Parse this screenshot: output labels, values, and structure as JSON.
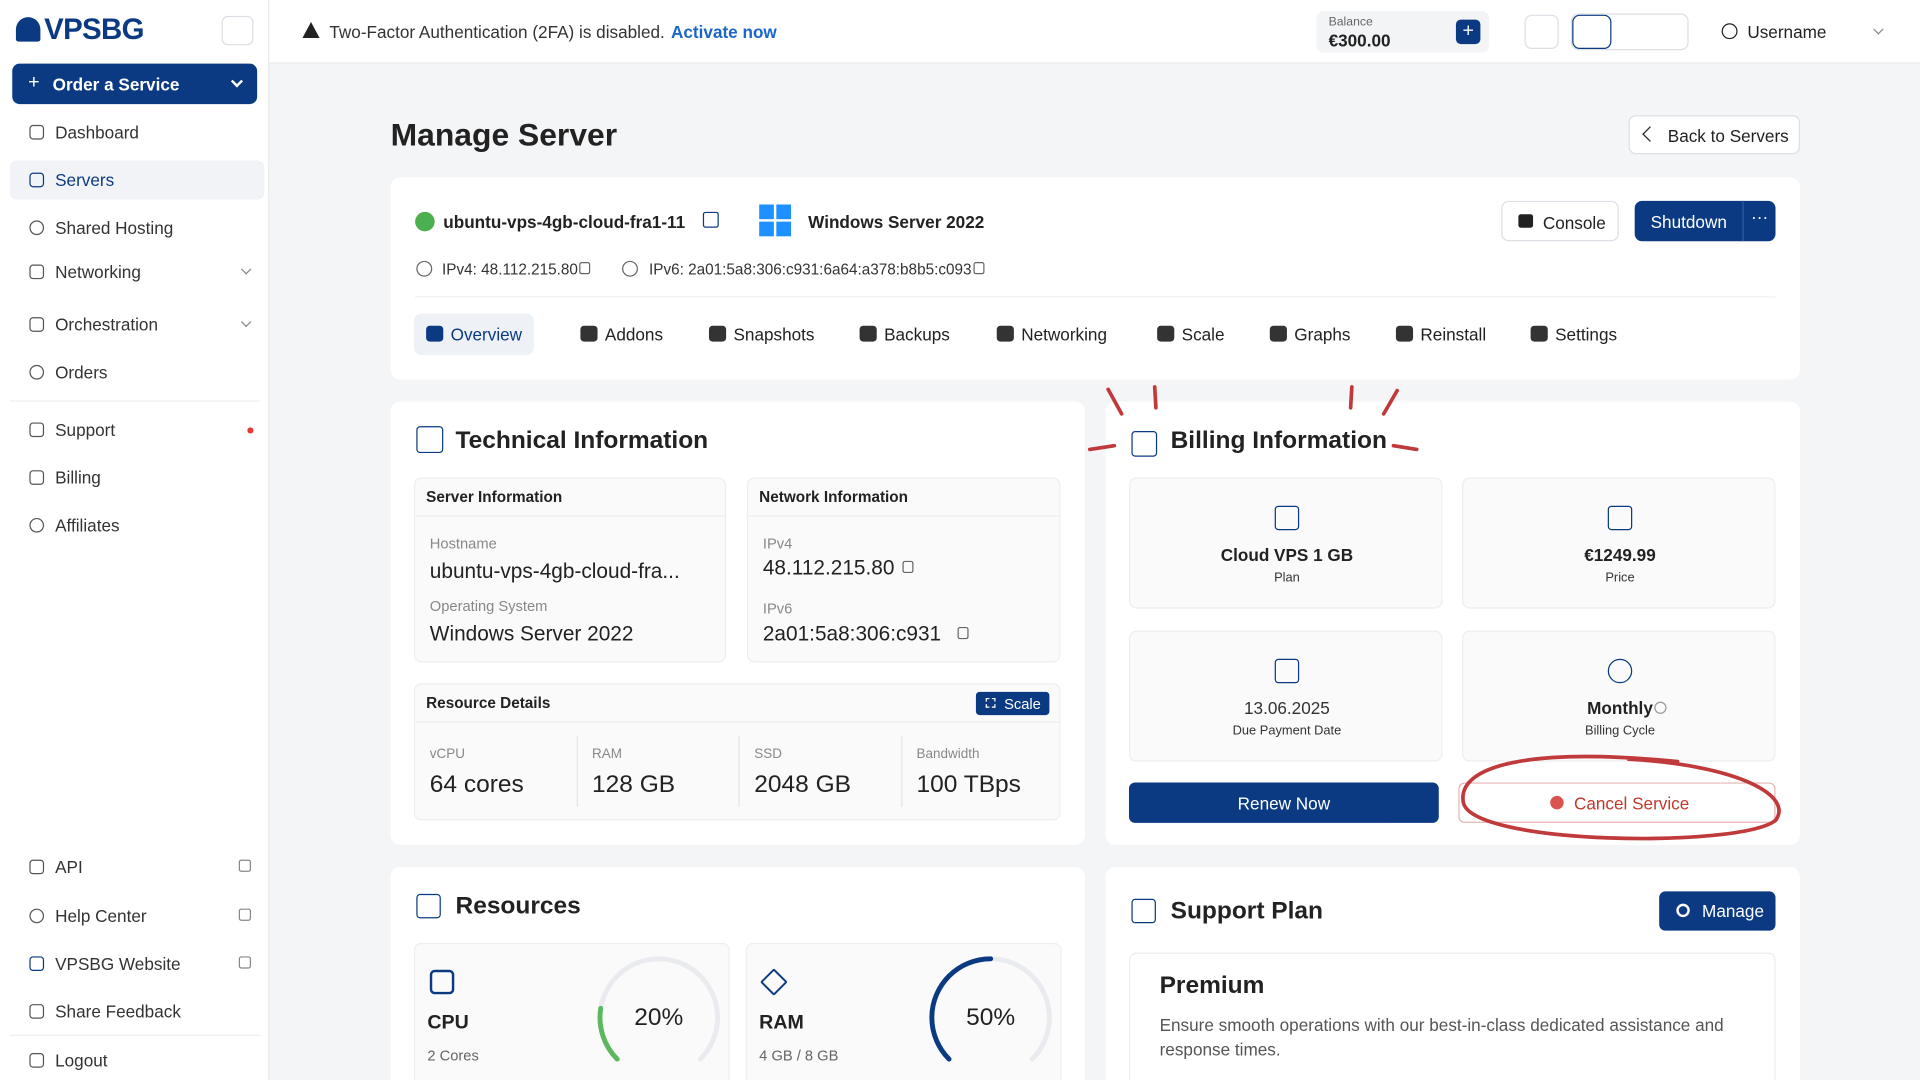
{
  "sidebar": {
    "brand": "VPSBG",
    "order_button": "Order a Service",
    "nav": [
      "Dashboard",
      "Servers",
      "Shared Hosting",
      "Networking",
      "Orchestration",
      "Orders",
      "Support",
      "Billing",
      "Affiliates"
    ],
    "footer_nav": [
      "API",
      "Help Center",
      "VPSBG Website",
      "Share Feedback",
      "Logout"
    ]
  },
  "topbar": {
    "alert": "Two-Factor Authentication (2FA) is disabled.",
    "alert_link": "Activate now",
    "balance_label": "Balance",
    "balance": "€300.00",
    "username": "Username"
  },
  "page": {
    "title": "Manage Server",
    "back": "Back to Servers"
  },
  "server": {
    "hostname": "ubuntu-vps-4gb-cloud-fra1-11",
    "os": "Windows Server 2022",
    "ipv4": "IPv4: 48.112.215.80",
    "ipv6": "IPv6: 2a01:5a8:306:c931:6a64:a378:b8b5:c093",
    "console": "Console",
    "shutdown": "Shutdown",
    "tabs": [
      "Overview",
      "Addons",
      "Snapshots",
      "Backups",
      "Networking",
      "Scale",
      "Graphs",
      "Reinstall",
      "Settings"
    ]
  },
  "technical": {
    "title": "Technical Information",
    "server_info": {
      "title": "Server Information",
      "hostname_label": "Hostname",
      "hostname": "ubuntu-vps-4gb-cloud-fra...",
      "os_label": "Operating System",
      "os": "Windows Server 2022"
    },
    "network_info": {
      "title": "Network Information",
      "ipv4_label": "IPv4",
      "ipv4": "48.112.215.80",
      "ipv6_label": "IPv6",
      "ipv6": "2a01:5a8:306:c931"
    },
    "resource_details": {
      "title": "Resource Details",
      "scale": "Scale",
      "items": [
        {
          "label": "vCPU",
          "value": "64 cores"
        },
        {
          "label": "RAM",
          "value": "128 GB"
        },
        {
          "label": "SSD",
          "value": "2048 GB"
        },
        {
          "label": "Bandwidth",
          "value": "100 TBps"
        }
      ]
    }
  },
  "billing": {
    "title": "Billing Information",
    "items": [
      {
        "value": "Cloud VPS 1 GB",
        "label": "Plan"
      },
      {
        "value": "€1249.99",
        "label": "Price"
      },
      {
        "value": "13.06.2025",
        "label": "Due Payment Date"
      },
      {
        "value": "Monthly",
        "label": "Billing Cycle"
      }
    ],
    "renew": "Renew Now",
    "cancel": "Cancel Service"
  },
  "resources": {
    "title": "Resources",
    "items": [
      {
        "name": "CPU",
        "detail": "2 Cores",
        "value": 20,
        "value_label": "20%",
        "color": "#5cb85c"
      },
      {
        "name": "RAM",
        "detail": "4 GB / 8 GB",
        "value": 50,
        "value_label": "50%",
        "color": "#0b3a82"
      }
    ]
  },
  "support": {
    "title": "Support Plan",
    "manage": "Manage",
    "plan": "Premium",
    "description": "Ensure smooth operations with our best-in-class dedicated assistance and response times."
  }
}
